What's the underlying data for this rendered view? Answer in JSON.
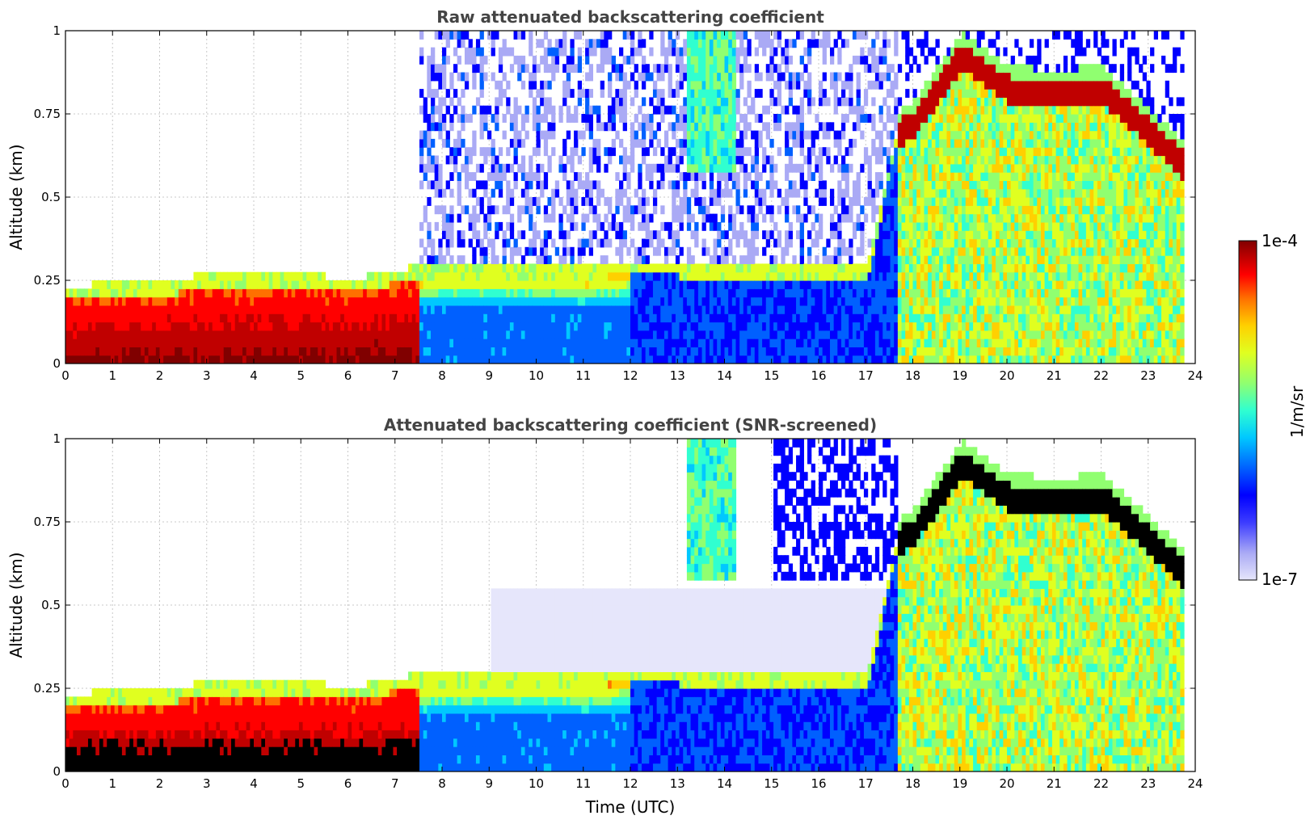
{
  "chart_data": [
    {
      "type": "heatmap",
      "title": "Raw attenuated backscattering coefficient",
      "xlabel": "",
      "ylabel": "Altitude (km)",
      "xlim": [
        0,
        24
      ],
      "ylim": [
        0,
        1
      ],
      "xticks": [
        "0",
        "1",
        "2",
        "3",
        "4",
        "5",
        "6",
        "7",
        "8",
        "9",
        "10",
        "11",
        "12",
        "13",
        "14",
        "15",
        "16",
        "17",
        "18",
        "19",
        "20",
        "21",
        "22",
        "23",
        "24"
      ],
      "yticks": [
        "0",
        "0.25",
        "0.5",
        "0.75",
        "1"
      ],
      "grid": true,
      "screened": false,
      "cloud_top_km": [
        [
          0,
          0.2
        ],
        [
          1,
          0.21
        ],
        [
          2,
          0.21
        ],
        [
          3,
          0.24
        ],
        [
          4,
          0.23
        ],
        [
          5,
          0.24
        ],
        [
          6,
          0.22
        ],
        [
          7,
          0.25
        ],
        [
          8,
          0.27
        ],
        [
          9,
          0.27
        ],
        [
          10,
          0.27
        ],
        [
          11,
          0.26
        ],
        [
          12,
          0.28
        ],
        [
          13,
          0.27
        ],
        [
          14,
          0.27
        ],
        [
          15,
          0.27
        ],
        [
          16,
          0.26
        ],
        [
          17,
          0.26
        ],
        [
          17.7,
          0.72
        ],
        [
          18,
          0.75
        ],
        [
          18.5,
          0.85
        ],
        [
          19,
          0.95
        ],
        [
          20,
          0.85
        ],
        [
          21,
          0.84
        ],
        [
          22,
          0.85
        ],
        [
          23,
          0.72
        ],
        [
          23.75,
          0.62
        ]
      ]
    },
    {
      "type": "heatmap",
      "title": "Attenuated backscattering coefficient (SNR-screened)",
      "xlabel": "Time (UTC)",
      "ylabel": "Altitude (km)",
      "xlim": [
        0,
        24
      ],
      "ylim": [
        0,
        1
      ],
      "xticks": [
        "0",
        "1",
        "2",
        "3",
        "4",
        "5",
        "6",
        "7",
        "8",
        "9",
        "10",
        "11",
        "12",
        "13",
        "14",
        "15",
        "16",
        "17",
        "18",
        "19",
        "20",
        "21",
        "22",
        "23",
        "24"
      ],
      "yticks": [
        "0",
        "0.25",
        "0.5",
        "0.75",
        "1"
      ],
      "grid": true,
      "screened": true,
      "cloud_top_km": [
        [
          0,
          0.2
        ],
        [
          1,
          0.21
        ],
        [
          2,
          0.21
        ],
        [
          3,
          0.24
        ],
        [
          4,
          0.23
        ],
        [
          5,
          0.24
        ],
        [
          6,
          0.22
        ],
        [
          7,
          0.25
        ],
        [
          8,
          0.27
        ],
        [
          9,
          0.27
        ],
        [
          10,
          0.27
        ],
        [
          11,
          0.26
        ],
        [
          12,
          0.28
        ],
        [
          13,
          0.27
        ],
        [
          14,
          0.27
        ],
        [
          15,
          0.27
        ],
        [
          16,
          0.26
        ],
        [
          17,
          0.26
        ],
        [
          17.7,
          0.72
        ],
        [
          18,
          0.75
        ],
        [
          18.5,
          0.85
        ],
        [
          19,
          0.95
        ],
        [
          20,
          0.85
        ],
        [
          21,
          0.84
        ],
        [
          22,
          0.85
        ],
        [
          23,
          0.72
        ],
        [
          23.75,
          0.62
        ]
      ]
    }
  ],
  "colorbar": {
    "label": "1/m/sr",
    "max_label": "1e-4",
    "min_label": "1e-7",
    "scale": "log",
    "range": [
      1e-07,
      0.0001
    ],
    "colormap": [
      "#e6e6fb",
      "#aaaaf5",
      "#3c3cff",
      "#0000ff",
      "#0060ff",
      "#00c8ff",
      "#30ffd0",
      "#90ff70",
      "#e0ff20",
      "#ffd000",
      "#ff7000",
      "#ff0000",
      "#c00000",
      "#800000"
    ]
  }
}
